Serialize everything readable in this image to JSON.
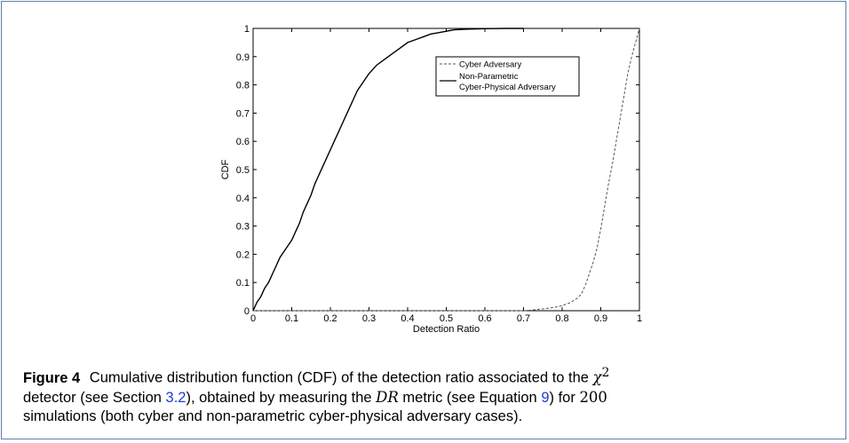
{
  "chart_data": {
    "type": "line",
    "title": "",
    "xlabel": "Detection Ratio",
    "ylabel": "CDF",
    "xlim": [
      0,
      1
    ],
    "ylim": [
      0,
      1
    ],
    "x_ticks": [
      "0",
      "0.1",
      "0.2",
      "0.3",
      "0.4",
      "0.5",
      "0.6",
      "0.7",
      "0.8",
      "0.9",
      "1"
    ],
    "y_ticks": [
      "0",
      "0.1",
      "0.2",
      "0.3",
      "0.4",
      "0.5",
      "0.6",
      "0.7",
      "0.8",
      "0.9",
      "1"
    ],
    "grid": false,
    "legend_position": "top-right",
    "series": [
      {
        "name": "Cyber Adversary",
        "style": "dashed",
        "color": "#555555",
        "x": [
          0,
          0.7,
          0.72,
          0.74,
          0.76,
          0.78,
          0.8,
          0.82,
          0.84,
          0.85,
          0.86,
          0.87,
          0.88,
          0.89,
          0.9,
          0.91,
          0.92,
          0.93,
          0.94,
          0.95,
          0.96,
          0.97,
          0.98,
          0.99,
          1.0
        ],
        "y": [
          0,
          0.0,
          0.002,
          0.005,
          0.008,
          0.012,
          0.018,
          0.028,
          0.045,
          0.06,
          0.09,
          0.13,
          0.17,
          0.22,
          0.29,
          0.37,
          0.45,
          0.52,
          0.6,
          0.68,
          0.76,
          0.84,
          0.9,
          0.95,
          1.0
        ]
      },
      {
        "name": "Non-Parametric Cyber-Physical Adversary",
        "style": "solid",
        "color": "#000000",
        "x": [
          0,
          0.01,
          0.02,
          0.03,
          0.04,
          0.05,
          0.06,
          0.07,
          0.08,
          0.09,
          0.1,
          0.11,
          0.12,
          0.13,
          0.14,
          0.15,
          0.16,
          0.17,
          0.18,
          0.19,
          0.2,
          0.21,
          0.22,
          0.23,
          0.24,
          0.25,
          0.26,
          0.27,
          0.28,
          0.29,
          0.3,
          0.32,
          0.34,
          0.36,
          0.38,
          0.4,
          0.42,
          0.44,
          0.46,
          0.48,
          0.5,
          0.52,
          0.55,
          0.6,
          0.65,
          0.7
        ],
        "y": [
          0,
          0.03,
          0.05,
          0.08,
          0.1,
          0.13,
          0.16,
          0.19,
          0.21,
          0.23,
          0.25,
          0.28,
          0.31,
          0.35,
          0.38,
          0.41,
          0.45,
          0.48,
          0.51,
          0.54,
          0.57,
          0.6,
          0.63,
          0.66,
          0.69,
          0.72,
          0.75,
          0.78,
          0.8,
          0.82,
          0.84,
          0.87,
          0.89,
          0.91,
          0.93,
          0.95,
          0.96,
          0.97,
          0.98,
          0.985,
          0.99,
          0.995,
          0.997,
          0.999,
          1.0,
          1.0
        ]
      }
    ]
  },
  "legend": {
    "cyber_label": "Cyber Adversary",
    "nonparam_label_line1": "Non-Parametric",
    "nonparam_label_line2": "Cyber-Physical Adversary"
  },
  "caption": {
    "label": "Figure 4",
    "t1": "Cumulative distribution function (CDF) of the detection ratio associated to the ",
    "chi": "χ",
    "chi_sup": "2",
    "t2": "detector (see Section ",
    "section_ref": "3.2",
    "t3": "), obtained by measuring the ",
    "dr": "DR",
    "t4": " metric (see Equation ",
    "eq_ref": "9",
    "t5": ") for ",
    "count": "200",
    "t6": "simulations (both cyber and non-parametric cyber-physical adversary cases)."
  }
}
